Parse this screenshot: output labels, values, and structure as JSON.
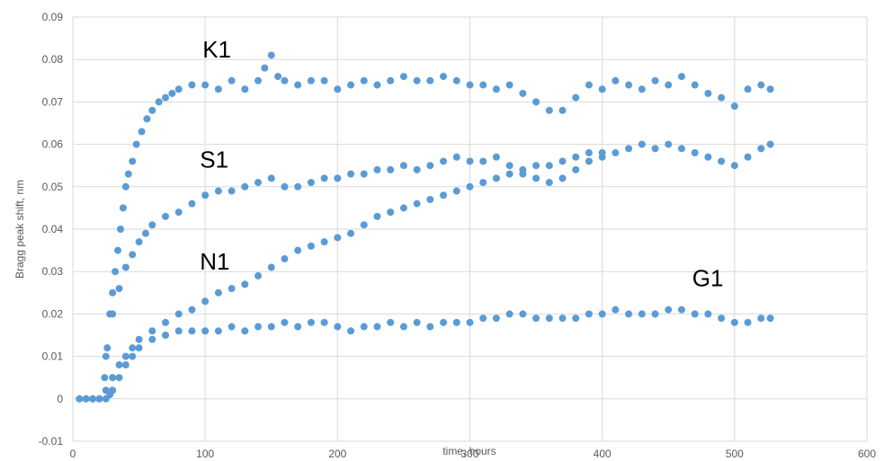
{
  "chart_data": {
    "type": "scatter",
    "title": "",
    "xlabel": "time, hours",
    "ylabel": "Bragg peak shift, nm",
    "xlim": [
      0,
      600
    ],
    "ylim": [
      -0.01,
      0.09
    ],
    "x_ticks": [
      0,
      100,
      200,
      300,
      400,
      500,
      600
    ],
    "y_ticks": [
      -0.01,
      0,
      0.01,
      0.02,
      0.03,
      0.04,
      0.05,
      0.06,
      0.07,
      0.08,
      0.09
    ],
    "grid": true,
    "legend": "none",
    "marker_color": "#5b9bd5",
    "series": [
      {
        "name": "K1",
        "x": [
          5,
          10,
          15,
          20,
          24,
          26,
          28,
          30,
          32,
          34,
          36,
          38,
          40,
          42,
          45,
          48,
          52,
          56,
          60,
          65,
          70,
          75,
          80,
          90,
          100,
          110,
          120,
          130,
          140,
          145,
          150,
          155,
          160,
          170,
          180,
          190,
          200,
          210,
          220,
          230,
          240,
          250,
          260,
          270,
          280,
          290,
          300,
          310,
          320,
          330,
          340,
          350,
          360,
          370,
          380,
          390,
          400,
          410,
          420,
          430,
          440,
          450,
          460,
          470,
          480,
          490,
          500,
          510,
          520,
          527
        ],
        "y": [
          0,
          0,
          0,
          0,
          0.005,
          0.012,
          0.02,
          0.025,
          0.03,
          0.035,
          0.04,
          0.045,
          0.05,
          0.053,
          0.056,
          0.06,
          0.063,
          0.066,
          0.068,
          0.07,
          0.071,
          0.072,
          0.073,
          0.074,
          0.074,
          0.073,
          0.075,
          0.073,
          0.075,
          0.078,
          0.081,
          0.076,
          0.075,
          0.074,
          0.075,
          0.075,
          0.073,
          0.074,
          0.075,
          0.074,
          0.075,
          0.076,
          0.075,
          0.075,
          0.076,
          0.075,
          0.074,
          0.074,
          0.073,
          0.074,
          0.072,
          0.07,
          0.068,
          0.068,
          0.071,
          0.074,
          0.073,
          0.075,
          0.074,
          0.073,
          0.075,
          0.074,
          0.076,
          0.074,
          0.072,
          0.071,
          0.069,
          0.073,
          0.074,
          0.073
        ]
      },
      {
        "name": "S1",
        "x": [
          25,
          30,
          35,
          40,
          45,
          50,
          55,
          60,
          70,
          80,
          90,
          100,
          110,
          120,
          130,
          140,
          150,
          160,
          170,
          180,
          190,
          200,
          210,
          220,
          230,
          240,
          250,
          260,
          270,
          280,
          290,
          300,
          310,
          320,
          330,
          340,
          350,
          360,
          370,
          380,
          390,
          400,
          410,
          420,
          430,
          440,
          450,
          460,
          470,
          480,
          490,
          500,
          510,
          520,
          527
        ],
        "y": [
          0.01,
          0.02,
          0.026,
          0.031,
          0.034,
          0.037,
          0.039,
          0.041,
          0.043,
          0.044,
          0.046,
          0.048,
          0.049,
          0.049,
          0.05,
          0.051,
          0.052,
          0.05,
          0.05,
          0.051,
          0.052,
          0.052,
          0.053,
          0.053,
          0.054,
          0.054,
          0.055,
          0.054,
          0.055,
          0.056,
          0.057,
          0.056,
          0.056,
          0.057,
          0.055,
          0.053,
          0.052,
          0.051,
          0.052,
          0.054,
          0.056,
          0.057,
          0.058,
          0.059,
          0.06,
          0.059,
          0.06,
          0.059,
          0.058,
          0.057,
          0.056,
          0.055,
          0.057,
          0.059,
          0.06
        ]
      },
      {
        "name": "N1",
        "x": [
          25,
          30,
          35,
          40,
          45,
          50,
          60,
          70,
          80,
          90,
          100,
          110,
          120,
          130,
          140,
          150,
          160,
          170,
          180,
          190,
          200,
          210,
          220,
          230,
          240,
          250,
          260,
          270,
          280,
          290,
          300,
          310,
          320,
          330,
          340,
          350,
          360,
          370,
          380,
          390,
          400
        ],
        "y": [
          0.002,
          0.005,
          0.008,
          0.01,
          0.012,
          0.014,
          0.016,
          0.018,
          0.02,
          0.021,
          0.023,
          0.025,
          0.026,
          0.027,
          0.029,
          0.031,
          0.033,
          0.035,
          0.036,
          0.037,
          0.038,
          0.039,
          0.041,
          0.043,
          0.044,
          0.045,
          0.046,
          0.047,
          0.048,
          0.049,
          0.05,
          0.051,
          0.052,
          0.053,
          0.054,
          0.055,
          0.055,
          0.056,
          0.057,
          0.058,
          0.058
        ]
      },
      {
        "name": "G1",
        "x": [
          5,
          10,
          15,
          20,
          25,
          28,
          30,
          35,
          40,
          45,
          50,
          60,
          70,
          80,
          90,
          100,
          110,
          120,
          130,
          140,
          150,
          160,
          170,
          180,
          190,
          200,
          210,
          220,
          230,
          240,
          250,
          260,
          270,
          280,
          290,
          300,
          310,
          320,
          330,
          340,
          350,
          360,
          370,
          380,
          390,
          400,
          410,
          420,
          430,
          440,
          450,
          460,
          470,
          480,
          490,
          500,
          510,
          520,
          527
        ],
        "y": [
          0,
          0,
          0,
          0,
          0,
          0.001,
          0.002,
          0.005,
          0.008,
          0.01,
          0.012,
          0.014,
          0.015,
          0.016,
          0.016,
          0.016,
          0.016,
          0.017,
          0.016,
          0.017,
          0.017,
          0.018,
          0.017,
          0.018,
          0.018,
          0.017,
          0.016,
          0.017,
          0.017,
          0.018,
          0.017,
          0.018,
          0.017,
          0.018,
          0.018,
          0.018,
          0.019,
          0.019,
          0.02,
          0.02,
          0.019,
          0.019,
          0.019,
          0.019,
          0.02,
          0.02,
          0.021,
          0.02,
          0.02,
          0.02,
          0.021,
          0.021,
          0.02,
          0.02,
          0.019,
          0.018,
          0.018,
          0.019,
          0.019
        ]
      }
    ],
    "annotations": [
      {
        "text": "K1",
        "x": 98,
        "y": 0.0805
      },
      {
        "text": "S1",
        "x": 96,
        "y": 0.0545
      },
      {
        "text": "N1",
        "x": 96,
        "y": 0.0305
      },
      {
        "text": "G1",
        "x": 468,
        "y": 0.0265
      }
    ]
  }
}
